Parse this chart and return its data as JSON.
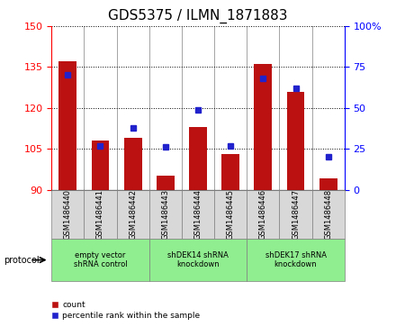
{
  "title": "GDS5375 / ILMN_1871883",
  "samples": [
    "GSM1486440",
    "GSM1486441",
    "GSM1486442",
    "GSM1486443",
    "GSM1486444",
    "GSM1486445",
    "GSM1486446",
    "GSM1486447",
    "GSM1486448"
  ],
  "counts": [
    137,
    108,
    109,
    95,
    113,
    103,
    136,
    126,
    94
  ],
  "percentiles": [
    70,
    27,
    38,
    26,
    49,
    27,
    68,
    62,
    20
  ],
  "ylim_left": [
    90,
    150
  ],
  "ylim_right": [
    0,
    100
  ],
  "yticks_left": [
    90,
    105,
    120,
    135,
    150
  ],
  "yticks_right": [
    0,
    25,
    50,
    75,
    100
  ],
  "bar_color": "#BB1111",
  "dot_color": "#2222CC",
  "protocol_groups": [
    {
      "label": "empty vector\nshRNA control",
      "start": 0,
      "end": 3
    },
    {
      "label": "shDEK14 shRNA\nknockdown",
      "start": 3,
      "end": 6
    },
    {
      "label": "shDEK17 shRNA\nknockdown",
      "start": 6,
      "end": 9
    }
  ],
  "protocol_label": "protocol",
  "legend_count": "count",
  "legend_percentile": "percentile rank within the sample",
  "bg_color": "#FFFFFF",
  "panel_bg": "#D8D8D8",
  "group_bg": "#90EE90",
  "title_fontsize": 11,
  "tick_fontsize": 8,
  "sample_fontsize": 6
}
